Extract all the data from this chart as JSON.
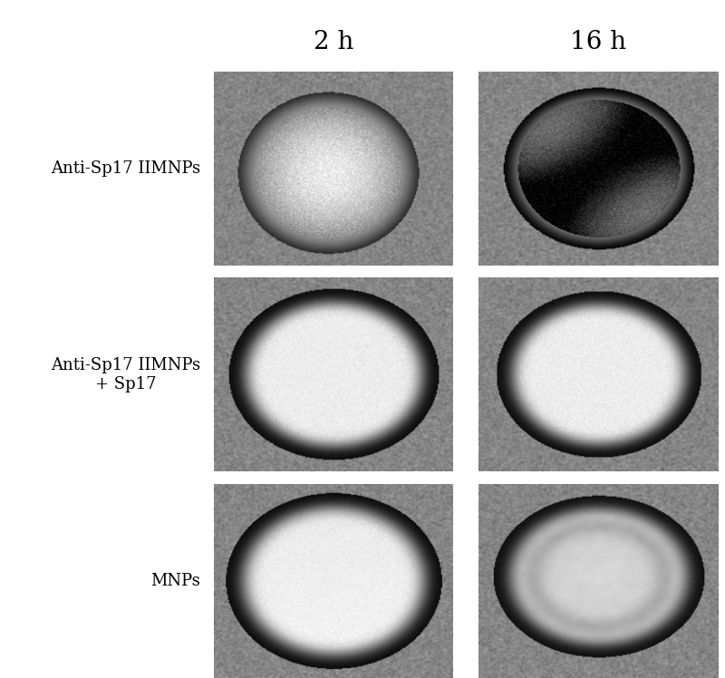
{
  "title_2h": "2 h",
  "title_16h": "16 h",
  "row_labels": [
    "Anti-Sp17 IIMNPs",
    "Anti-Sp17 IIMNPs\n+ Sp17",
    "MNPs"
  ],
  "fig_width": 8.0,
  "fig_height": 7.48,
  "bg_color": "#ffffff",
  "header_fontsize": 20,
  "label_fontsize": 13,
  "grid_rows": 3,
  "grid_cols": 2,
  "panel_bg_mean": 0.52,
  "panel_bg_noise": 0.08
}
